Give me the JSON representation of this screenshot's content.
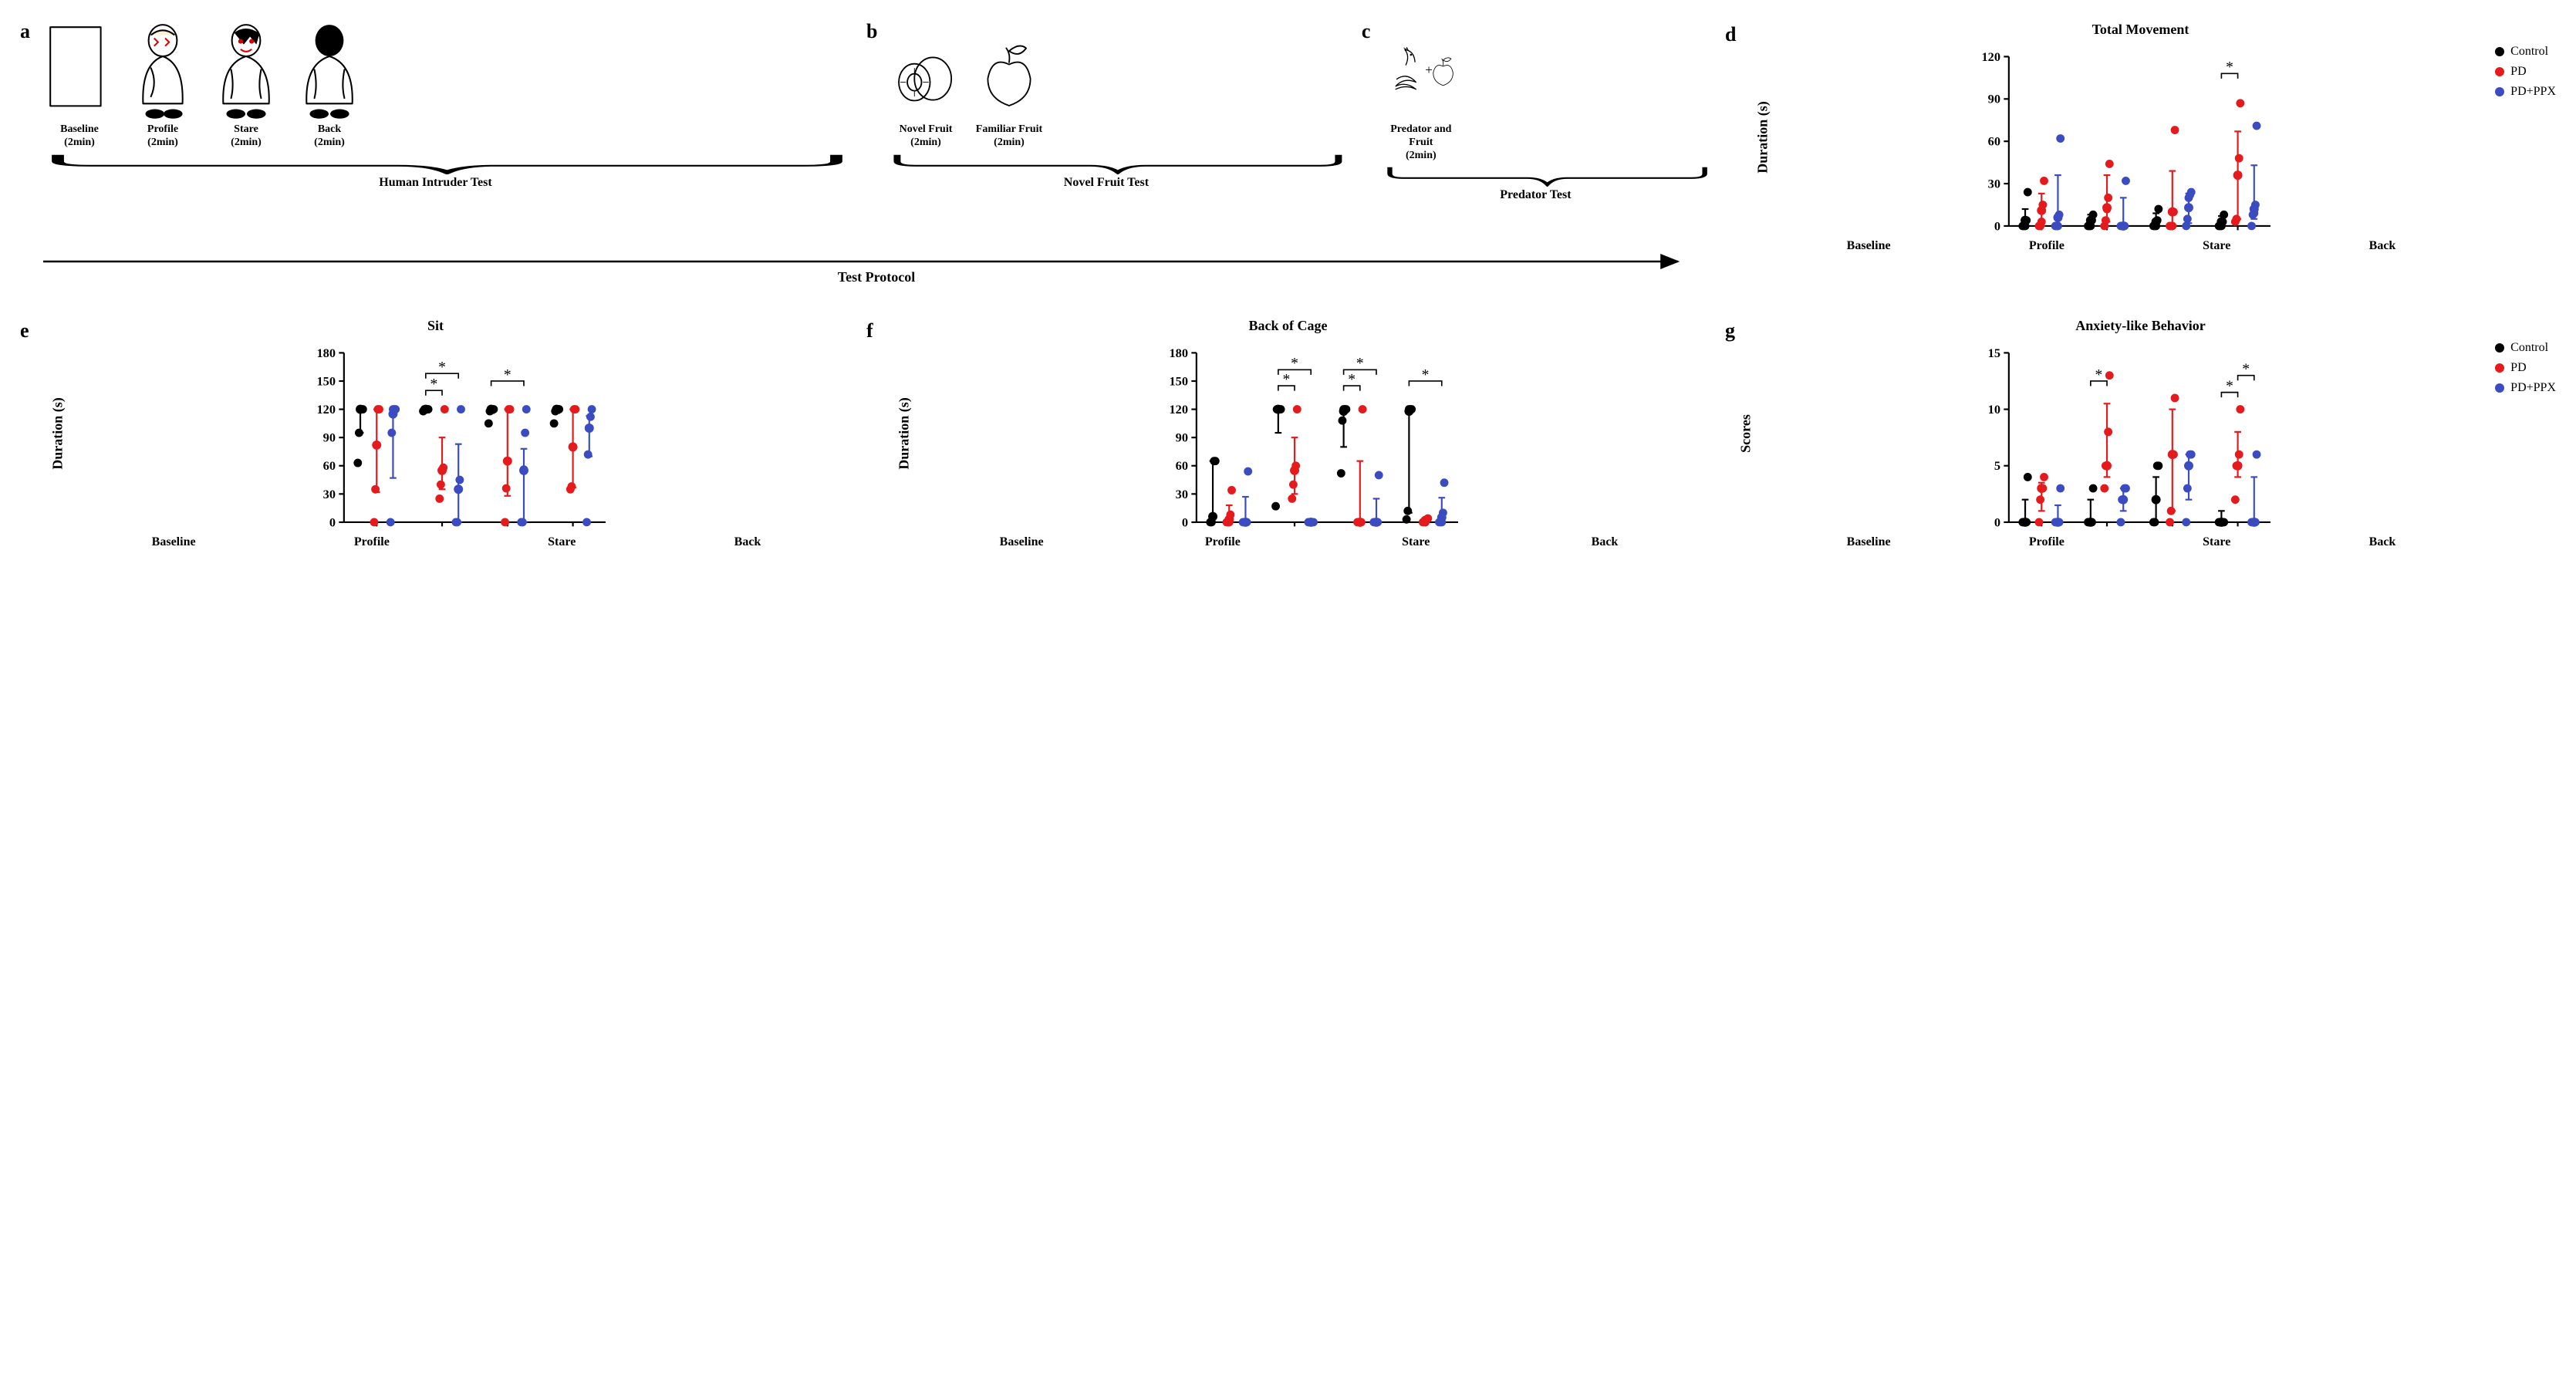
{
  "colors": {
    "control": "#000000",
    "pd": "#e41a1c",
    "ppx": "#3b4cc0",
    "axis": "#000000",
    "dashed": "#000000",
    "background": "#ffffff"
  },
  "markers": {
    "radius": 5,
    "errorbar_width": 2,
    "errorbar_cap": 8
  },
  "protocol": {
    "a_label": "a",
    "b_label": "b",
    "c_label": "c",
    "arrow_label": "Test Protocol",
    "human_intruder": {
      "brace_label": "Human Intruder Test",
      "stages": [
        {
          "name": "Baseline",
          "duration": "(2min)",
          "icon": "empty-box"
        },
        {
          "name": "Profile",
          "duration": "(2min)",
          "icon": "intruder-profile"
        },
        {
          "name": "Stare",
          "duration": "(2min)",
          "icon": "intruder-stare"
        },
        {
          "name": "Back",
          "duration": "(2min)",
          "icon": "intruder-back"
        }
      ]
    },
    "novel_fruit": {
      "brace_label": "Novel Fruit Test",
      "stages": [
        {
          "name": "Novel Fruit",
          "duration": "(2min)",
          "icon": "kiwi"
        },
        {
          "name": "Familiar Fruit",
          "duration": "(2min)",
          "icon": "apple"
        }
      ]
    },
    "predator": {
      "brace_label": "Predator Test",
      "stages": [
        {
          "name": "Predator and Fruit",
          "duration": "(2min)",
          "icon": "snake-apple"
        }
      ]
    }
  },
  "legend": [
    {
      "label": "Control",
      "color_ref": "control"
    },
    {
      "label": "PD",
      "color_ref": "pd"
    },
    {
      "label": "PD+PPX",
      "color_ref": "ppx"
    }
  ],
  "charts": {
    "d": {
      "panel_label": "d",
      "title": "Total Movement",
      "ylabel": "Duration (s)",
      "ylim": [
        0,
        120
      ],
      "ytick_step": 30,
      "show_legend": true,
      "categories": [
        "Baseline",
        "Profile",
        "Stare",
        "Back"
      ],
      "significance": [
        {
          "cat": 3,
          "g1": 0,
          "g2": 1,
          "mark": "*",
          "y": 108
        }
      ],
      "series": [
        {
          "name": "Control",
          "color_ref": "control",
          "points": [
            [
              0,
              0,
              0,
              4,
              24
            ],
            [
              0,
              0,
              0,
              4,
              8
            ],
            [
              0,
              0,
              0,
              4,
              12
            ],
            [
              0,
              0,
              0,
              3,
              8
            ]
          ],
          "median": [
            4,
            4,
            3,
            3
          ],
          "q1": [
            0,
            0,
            0,
            0
          ],
          "q3": [
            12,
            8,
            9,
            7
          ]
        },
        {
          "name": "PD",
          "color_ref": "pd",
          "points": [
            [
              0,
              0,
              3,
              15,
              32
            ],
            [
              0,
              4,
              12,
              20,
              44
            ],
            [
              0,
              0,
              0,
              10,
              68
            ],
            [
              3,
              5,
              36,
              48,
              87
            ]
          ],
          "median": [
            11,
            13,
            10,
            36
          ],
          "q1": [
            0,
            3,
            0,
            5
          ],
          "q3": [
            23,
            36,
            39,
            67
          ]
        },
        {
          "name": "PD+PPX",
          "color_ref": "ppx",
          "points": [
            [
              0,
              0,
              0,
              8,
              62
            ],
            [
              0,
              0,
              0,
              0,
              32
            ],
            [
              0,
              5,
              20,
              22,
              24
            ],
            [
              0,
              8,
              9,
              15,
              71
            ]
          ],
          "median": [
            6,
            0,
            13,
            12
          ],
          "q1": [
            0,
            0,
            2,
            5
          ],
          "q3": [
            36,
            20,
            23,
            43
          ]
        }
      ]
    },
    "e": {
      "panel_label": "e",
      "title": "Sit",
      "ylabel": "Duration (s)",
      "ylim": [
        0,
        180
      ],
      "ytick_step": 30,
      "show_legend": false,
      "categories": [
        "Baseline",
        "Profile",
        "Stare",
        "Back"
      ],
      "significance": [
        {
          "cat": 1,
          "g1": 0,
          "g2": 1,
          "mark": "*",
          "y": 140
        },
        {
          "cat": 1,
          "g1": 0,
          "g2": 2,
          "mark": "*",
          "y": 158
        },
        {
          "cat": 2,
          "g1": 0,
          "g2": 2,
          "mark": "*",
          "y": 150
        }
      ],
      "series": [
        {
          "name": "Control",
          "color_ref": "control",
          "points": [
            [
              63,
              95,
              120,
              120,
              120
            ],
            [
              118,
              120,
              120,
              120,
              120
            ],
            [
              105,
              118,
              120,
              120,
              120
            ],
            [
              105,
              118,
              120,
              120,
              120
            ]
          ],
          "median": [
            120,
            120,
            120,
            120
          ],
          "q1": [
            95,
            118,
            116,
            116
          ],
          "q3": [
            120,
            120,
            120,
            120
          ]
        },
        {
          "name": "PD",
          "color_ref": "pd",
          "points": [
            [
              0,
              35,
              82,
              120,
              120
            ],
            [
              25,
              40,
              55,
              58,
              120
            ],
            [
              0,
              36,
              65,
              120,
              120
            ],
            [
              35,
              38,
              80,
              120,
              120
            ]
          ],
          "median": [
            82,
            55,
            65,
            80
          ],
          "q1": [
            32,
            35,
            28,
            37
          ],
          "q3": [
            120,
            90,
            120,
            120
          ]
        },
        {
          "name": "PD+PPX",
          "color_ref": "ppx",
          "points": [
            [
              0,
              95,
              120,
              120,
              120
            ],
            [
              0,
              0,
              35,
              45,
              120
            ],
            [
              0,
              0,
              56,
              95,
              120
            ],
            [
              0,
              72,
              100,
              112,
              120
            ]
          ],
          "median": [
            115,
            35,
            55,
            100
          ],
          "q1": [
            47,
            0,
            0,
            70
          ],
          "q3": [
            120,
            83,
            78,
            113
          ]
        }
      ]
    },
    "f": {
      "panel_label": "f",
      "title": "Back of Cage",
      "ylabel": "Duration (s)",
      "ylim": [
        0,
        180
      ],
      "ytick_step": 30,
      "show_legend": false,
      "categories": [
        "Baseline",
        "Profile",
        "Stare",
        "Back"
      ],
      "significance": [
        {
          "cat": 1,
          "g1": 0,
          "g2": 1,
          "mark": "*",
          "y": 145
        },
        {
          "cat": 1,
          "g1": 0,
          "g2": 2,
          "mark": "*",
          "y": 162
        },
        {
          "cat": 2,
          "g1": 0,
          "g2": 1,
          "mark": "*",
          "y": 145
        },
        {
          "cat": 2,
          "g1": 0,
          "g2": 2,
          "mark": "*",
          "y": 162
        },
        {
          "cat": 3,
          "g1": 0,
          "g2": 2,
          "mark": "*",
          "y": 150
        }
      ],
      "series": [
        {
          "name": "Control",
          "color_ref": "control",
          "points": [
            [
              0,
              0,
              6,
              65,
              65
            ],
            [
              17,
              120,
              120,
              120,
              120
            ],
            [
              52,
              108,
              120,
              120,
              120
            ],
            [
              3,
              12,
              120,
              120,
              120
            ]
          ],
          "median": [
            6,
            120,
            118,
            118
          ],
          "q1": [
            0,
            95,
            80,
            10
          ],
          "q3": [
            65,
            120,
            120,
            120
          ]
        },
        {
          "name": "PD",
          "color_ref": "pd",
          "points": [
            [
              0,
              0,
              0,
              8,
              34
            ],
            [
              25,
              40,
              55,
              60,
              120
            ],
            [
              0,
              0,
              0,
              0,
              120
            ],
            [
              0,
              0,
              0,
              3,
              4
            ]
          ],
          "median": [
            3,
            55,
            0,
            2
          ],
          "q1": [
            0,
            30,
            0,
            0
          ],
          "q3": [
            18,
            90,
            65,
            4
          ]
        },
        {
          "name": "PD+PPX",
          "color_ref": "ppx",
          "points": [
            [
              0,
              0,
              0,
              0,
              54
            ],
            [
              0,
              0,
              0,
              0,
              0
            ],
            [
              0,
              0,
              0,
              0,
              50
            ],
            [
              0,
              0,
              0,
              10,
              42
            ]
          ],
          "median": [
            0,
            0,
            0,
            5
          ],
          "q1": [
            0,
            0,
            0,
            0
          ],
          "q3": [
            27,
            0,
            25,
            26
          ]
        }
      ]
    },
    "g": {
      "panel_label": "g",
      "title": "Anxiety-like Behavior",
      "ylabel": "Scores",
      "ylim": [
        0,
        15
      ],
      "ytick_step": 5,
      "show_legend": true,
      "categories": [
        "Baseline",
        "Profile",
        "Stare",
        "Back"
      ],
      "significance": [
        {
          "cat": 1,
          "g1": 0,
          "g2": 1,
          "mark": "*",
          "y": 12.5
        },
        {
          "cat": 3,
          "g1": 0,
          "g2": 1,
          "mark": "*",
          "y": 11.5
        },
        {
          "cat": 3,
          "g1": 1,
          "g2": 2,
          "mark": "*",
          "y": 13
        }
      ],
      "series": [
        {
          "name": "Control",
          "color_ref": "control",
          "points": [
            [
              0,
              0,
              0,
              0,
              4
            ],
            [
              0,
              0,
              0,
              0,
              3
            ],
            [
              0,
              0,
              2,
              5,
              5
            ],
            [
              0,
              0,
              0,
              0,
              0
            ]
          ],
          "median": [
            0,
            0,
            2,
            0
          ],
          "q1": [
            0,
            0,
            0,
            0
          ],
          "q3": [
            2,
            2,
            4,
            1
          ]
        },
        {
          "name": "PD",
          "color_ref": "pd",
          "points": [
            [
              0,
              2,
              3,
              3,
              4
            ],
            [
              3,
              5,
              5,
              8,
              13
            ],
            [
              0,
              1,
              6,
              6,
              11
            ],
            [
              2,
              5,
              5,
              6,
              10
            ]
          ],
          "median": [
            3,
            5,
            6,
            5
          ],
          "q1": [
            1,
            4,
            1,
            4
          ],
          "q3": [
            3.5,
            10.5,
            10,
            8
          ]
        },
        {
          "name": "PD+PPX",
          "color_ref": "ppx",
          "points": [
            [
              0,
              0,
              0,
              0,
              3
            ],
            [
              0,
              2,
              2,
              3,
              3
            ],
            [
              0,
              3,
              5,
              6,
              6
            ],
            [
              0,
              0,
              0,
              0,
              6
            ]
          ],
          "median": [
            0,
            2,
            5,
            0
          ],
          "q1": [
            0,
            1,
            2,
            0
          ],
          "q3": [
            1.5,
            3,
            6,
            4
          ]
        }
      ]
    }
  }
}
